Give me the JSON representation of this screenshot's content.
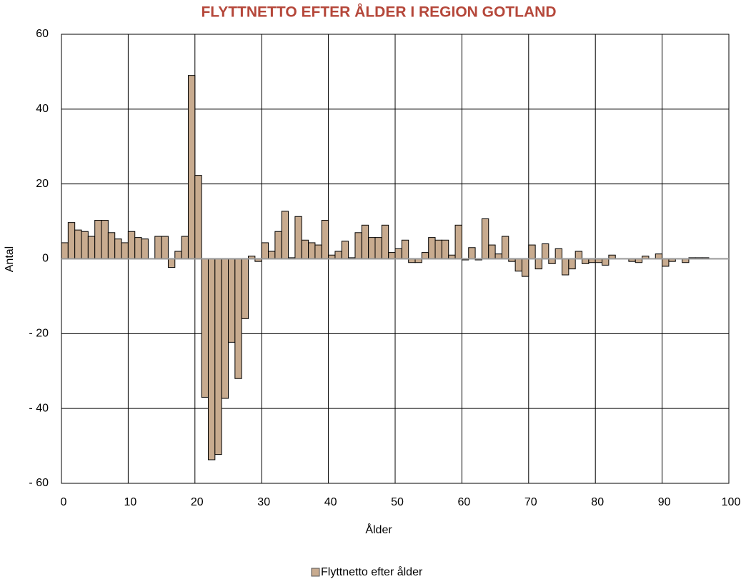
{
  "chart_data": {
    "type": "bar",
    "title": "FLYTTNETTO EFTER ÅLDER I REGION GOTLAND",
    "x_label": "Ålder",
    "y_label": "Antal",
    "x": [
      0,
      1,
      2,
      3,
      4,
      5,
      6,
      7,
      8,
      9,
      10,
      11,
      12,
      13,
      14,
      15,
      16,
      17,
      18,
      19,
      20,
      21,
      22,
      23,
      24,
      25,
      26,
      27,
      28,
      29,
      30,
      31,
      32,
      33,
      34,
      35,
      36,
      37,
      38,
      39,
      40,
      41,
      42,
      43,
      44,
      45,
      46,
      47,
      48,
      49,
      50,
      51,
      52,
      53,
      54,
      55,
      56,
      57,
      58,
      59,
      60,
      61,
      62,
      63,
      64,
      65,
      66,
      67,
      68,
      69,
      70,
      71,
      72,
      73,
      74,
      75,
      76,
      77,
      78,
      79,
      80,
      81,
      82,
      83,
      84,
      85,
      86,
      87,
      88,
      89,
      90,
      91,
      92,
      93,
      94,
      95,
      96
    ],
    "series": [
      {
        "name": "Flyttnetto efter ålder",
        "color": "#c8ab8f",
        "values": [
          4.3,
          9.7,
          7.7,
          7.3,
          6,
          10.3,
          10.3,
          7,
          5.3,
          4.3,
          7.3,
          5.7,
          5.3,
          0,
          6,
          6,
          -2.3,
          2,
          6,
          49,
          22.3,
          -37,
          -53.7,
          -52.3,
          -37.3,
          -22.3,
          -32,
          -16,
          0.7,
          -0.7,
          4.3,
          2,
          7.3,
          12.7,
          0.3,
          11.3,
          5,
          4.3,
          3.7,
          10.3,
          1,
          2,
          4.7,
          0.3,
          7,
          9,
          5.7,
          5.7,
          9,
          1.7,
          2.7,
          5,
          -1,
          -1,
          1.7,
          5.7,
          5,
          5,
          1,
          9,
          -0.3,
          3,
          -0.3,
          10.7,
          3.7,
          1.3,
          6,
          -0.7,
          -3.3,
          -4.7,
          3.7,
          -2.7,
          4,
          -1.3,
          2.7,
          -4.3,
          -2.7,
          2,
          -1.3,
          -1,
          -1,
          -1.7,
          1,
          0,
          0,
          -0.7,
          -1,
          0.7,
          0,
          1.3,
          -2,
          -0.7,
          0,
          -1,
          0.3,
          0.3,
          0.3
        ]
      }
    ],
    "xlim": [
      0,
      100
    ],
    "xticks": [
      0,
      10,
      20,
      30,
      40,
      50,
      60,
      70,
      80,
      90,
      100
    ],
    "ylim": [
      -60,
      60
    ],
    "yticks": [
      {
        "value": -60,
        "label": "- 60"
      },
      {
        "value": -40,
        "label": "- 40"
      },
      {
        "value": -20,
        "label": "- 20"
      },
      0,
      20,
      40,
      60
    ],
    "grid": true,
    "legend": "bottom"
  }
}
